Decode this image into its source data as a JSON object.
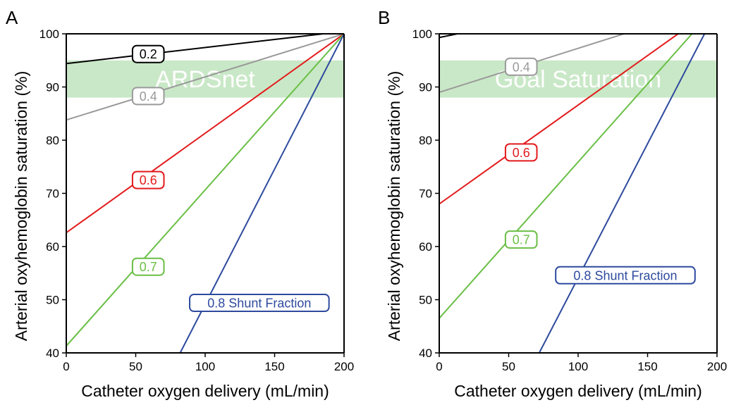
{
  "chart_data": [
    {
      "type": "line",
      "panel": "A",
      "xlabel": "Catheter oxygen delivery (mL/min)",
      "ylabel": "Arterial oxyhemoglobin saturation (%)",
      "xlim": [
        0,
        200
      ],
      "ylim": [
        40,
        100
      ],
      "xticks": [
        "0",
        "50",
        "100",
        "150",
        "200"
      ],
      "yticks": [
        "40",
        "50",
        "60",
        "70",
        "80",
        "90",
        "100"
      ],
      "band": {
        "label": "ARDSnet",
        "y": [
          88,
          95
        ],
        "color": "#c9e8c7"
      },
      "series": [
        {
          "name": "0.2",
          "color": "#000000",
          "label_x": 59,
          "label_y": 96.2,
          "points": [
            [
              0,
              94.4
            ],
            [
              185,
              100
            ],
            [
              200,
              100
            ]
          ]
        },
        {
          "name": "0.4",
          "color": "#9a9a9a",
          "label_x": 59,
          "label_y": 88.3,
          "points": [
            [
              0,
              83.8
            ],
            [
              200,
              100
            ]
          ]
        },
        {
          "name": "0.6",
          "color": "#e31a1c",
          "label_x": 59,
          "label_y": 72.5,
          "points": [
            [
              0,
              62.6
            ],
            [
              200,
              100
            ]
          ]
        },
        {
          "name": "0.7",
          "color": "#6abf45",
          "label_x": 59,
          "label_y": 56.2,
          "points": [
            [
              0,
              41.3
            ],
            [
              200,
              100
            ]
          ]
        },
        {
          "name": "0.8 Shunt Fraction",
          "color": "#2e4a9e",
          "label_x": 139,
          "label_y": 49.4,
          "points": [
            [
              82,
              40
            ],
            [
              200,
              100
            ]
          ]
        }
      ]
    },
    {
      "type": "line",
      "panel": "B",
      "xlabel": "Catheter oxygen delivery (mL/min)",
      "ylabel": "Arterial oxyhemoglobin saturation (%)",
      "xlim": [
        0,
        200
      ],
      "ylim": [
        40,
        100
      ],
      "xticks": [
        "0",
        "50",
        "100",
        "150",
        "200"
      ],
      "yticks": [
        "40",
        "50",
        "60",
        "70",
        "80",
        "90",
        "100"
      ],
      "band": {
        "label": "Goal Saturation",
        "y": [
          88,
          95
        ],
        "color": "#c9e8c7"
      },
      "series": [
        {
          "name": "",
          "color": "#000000",
          "label_x": null,
          "label_y": null,
          "points": [
            [
              0,
              99.3
            ],
            [
              13,
              100
            ]
          ]
        },
        {
          "name": "0.4",
          "color": "#9a9a9a",
          "label_x": 59,
          "label_y": 93.8,
          "points": [
            [
              0,
              89
            ],
            [
              133,
              100
            ]
          ]
        },
        {
          "name": "0.6",
          "color": "#e31a1c",
          "label_x": 59,
          "label_y": 77.7,
          "points": [
            [
              0,
              68
            ],
            [
              172,
              100
            ]
          ]
        },
        {
          "name": "0.7",
          "color": "#6abf45",
          "label_x": 59,
          "label_y": 61.3,
          "points": [
            [
              0,
              46.5
            ],
            [
              182,
              100
            ]
          ]
        },
        {
          "name": "0.8 Shunt Fraction",
          "color": "#2e4a9e",
          "label_x": 134,
          "label_y": 54.6,
          "points": [
            [
              72,
              40
            ],
            [
              191,
              100
            ]
          ]
        }
      ]
    }
  ]
}
